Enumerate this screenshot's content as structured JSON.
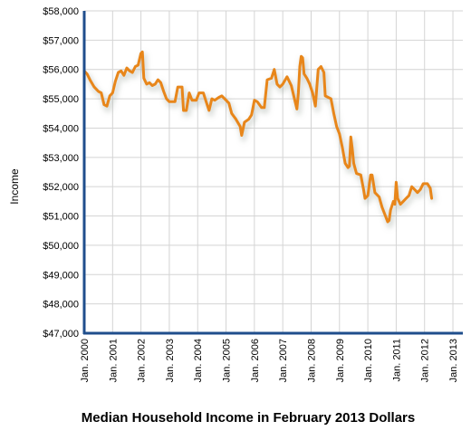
{
  "chart_data": {
    "type": "line",
    "title": "Median Household Income in February 2013 Dollars",
    "ylabel": "Income",
    "xlabel": "",
    "ylim": [
      47000,
      58000
    ],
    "xlim": [
      2000,
      2013.35
    ],
    "grid": true,
    "y_ticks": [
      "$47,000",
      "$48,000",
      "$49,000",
      "$50,000",
      "$51,000",
      "$52,000",
      "$53,000",
      "$54,000",
      "$55,000",
      "$56,000",
      "$57,000",
      "$58,000"
    ],
    "x_ticks": [
      "Jan. 2000",
      "Jan. 2001",
      "Jan. 2002",
      "Jan. 2003",
      "Jan. 2004",
      "Jan. 2005",
      "Jan. 2006",
      "Jan. 2007",
      "Jan. 2008",
      "Jan. 2009",
      "Jan. 2010",
      "Jan. 2011",
      "Jan. 2012",
      "Jan. 2013"
    ],
    "line_color": "#E8861A",
    "series": [
      {
        "name": "",
        "points": [
          [
            2000.0,
            55950
          ],
          [
            2000.1,
            55850
          ],
          [
            2000.2,
            55650
          ],
          [
            2000.35,
            55400
          ],
          [
            2000.5,
            55250
          ],
          [
            2000.6,
            55200
          ],
          [
            2000.7,
            54800
          ],
          [
            2000.8,
            54750
          ],
          [
            2000.9,
            55100
          ],
          [
            2001.0,
            55200
          ],
          [
            2001.1,
            55600
          ],
          [
            2001.2,
            55900
          ],
          [
            2001.3,
            55950
          ],
          [
            2001.4,
            55800
          ],
          [
            2001.5,
            56050
          ],
          [
            2001.6,
            55950
          ],
          [
            2001.7,
            55900
          ],
          [
            2001.8,
            56100
          ],
          [
            2001.9,
            56150
          ],
          [
            2002.0,
            56550
          ],
          [
            2002.05,
            56600
          ],
          [
            2002.1,
            55700
          ],
          [
            2002.2,
            55500
          ],
          [
            2002.3,
            55550
          ],
          [
            2002.4,
            55450
          ],
          [
            2002.5,
            55500
          ],
          [
            2002.6,
            55650
          ],
          [
            2002.7,
            55550
          ],
          [
            2002.8,
            55250
          ],
          [
            2002.9,
            55000
          ],
          [
            2003.0,
            54900
          ],
          [
            2003.2,
            54900
          ],
          [
            2003.3,
            55400
          ],
          [
            2003.45,
            55400
          ],
          [
            2003.5,
            54600
          ],
          [
            2003.6,
            54600
          ],
          [
            2003.7,
            55200
          ],
          [
            2003.8,
            54950
          ],
          [
            2003.95,
            54950
          ],
          [
            2004.05,
            55200
          ],
          [
            2004.2,
            55200
          ],
          [
            2004.3,
            54900
          ],
          [
            2004.4,
            54600
          ],
          [
            2004.5,
            55000
          ],
          [
            2004.6,
            54950
          ],
          [
            2004.75,
            55050
          ],
          [
            2004.85,
            55100
          ],
          [
            2005.0,
            54950
          ],
          [
            2005.1,
            54850
          ],
          [
            2005.2,
            54500
          ],
          [
            2005.35,
            54300
          ],
          [
            2005.5,
            54050
          ],
          [
            2005.55,
            53750
          ],
          [
            2005.65,
            54200
          ],
          [
            2005.8,
            54300
          ],
          [
            2005.9,
            54450
          ],
          [
            2006.0,
            54950
          ],
          [
            2006.1,
            54900
          ],
          [
            2006.25,
            54700
          ],
          [
            2006.35,
            54700
          ],
          [
            2006.45,
            55650
          ],
          [
            2006.6,
            55700
          ],
          [
            2006.7,
            56000
          ],
          [
            2006.8,
            55500
          ],
          [
            2006.9,
            55400
          ],
          [
            2007.0,
            55500
          ],
          [
            2007.15,
            55750
          ],
          [
            2007.3,
            55450
          ],
          [
            2007.4,
            55050
          ],
          [
            2007.5,
            54650
          ],
          [
            2007.55,
            55200
          ],
          [
            2007.6,
            56100
          ],
          [
            2007.65,
            56450
          ],
          [
            2007.7,
            56400
          ],
          [
            2007.75,
            55850
          ],
          [
            2007.85,
            55700
          ],
          [
            2007.95,
            55500
          ],
          [
            2008.05,
            55200
          ],
          [
            2008.15,
            54750
          ],
          [
            2008.25,
            56000
          ],
          [
            2008.35,
            56100
          ],
          [
            2008.45,
            55900
          ],
          [
            2008.5,
            55100
          ],
          [
            2008.6,
            55050
          ],
          [
            2008.7,
            55000
          ],
          [
            2008.8,
            54500
          ],
          [
            2008.9,
            54050
          ],
          [
            2009.0,
            53800
          ],
          [
            2009.1,
            53350
          ],
          [
            2009.2,
            52800
          ],
          [
            2009.3,
            52650
          ],
          [
            2009.35,
            52700
          ],
          [
            2009.4,
            53700
          ],
          [
            2009.45,
            53300
          ],
          [
            2009.5,
            52800
          ],
          [
            2009.6,
            52450
          ],
          [
            2009.75,
            52400
          ],
          [
            2009.85,
            51900
          ],
          [
            2009.9,
            51600
          ],
          [
            2010.0,
            51700
          ],
          [
            2010.1,
            52400
          ],
          [
            2010.15,
            52400
          ],
          [
            2010.25,
            51800
          ],
          [
            2010.4,
            51650
          ],
          [
            2010.5,
            51300
          ],
          [
            2010.6,
            51050
          ],
          [
            2010.7,
            50800
          ],
          [
            2010.75,
            50850
          ],
          [
            2010.8,
            51200
          ],
          [
            2010.9,
            51500
          ],
          [
            2010.95,
            51400
          ],
          [
            2011.0,
            52150
          ],
          [
            2011.05,
            51600
          ],
          [
            2011.15,
            51400
          ],
          [
            2011.25,
            51500
          ],
          [
            2011.35,
            51600
          ],
          [
            2011.45,
            51700
          ],
          [
            2011.55,
            52000
          ],
          [
            2011.65,
            51900
          ],
          [
            2011.75,
            51800
          ],
          [
            2011.85,
            51900
          ],
          [
            2011.95,
            52100
          ],
          [
            2012.1,
            52100
          ],
          [
            2012.2,
            51950
          ],
          [
            2012.25,
            51600
          ]
        ]
      }
    ]
  }
}
